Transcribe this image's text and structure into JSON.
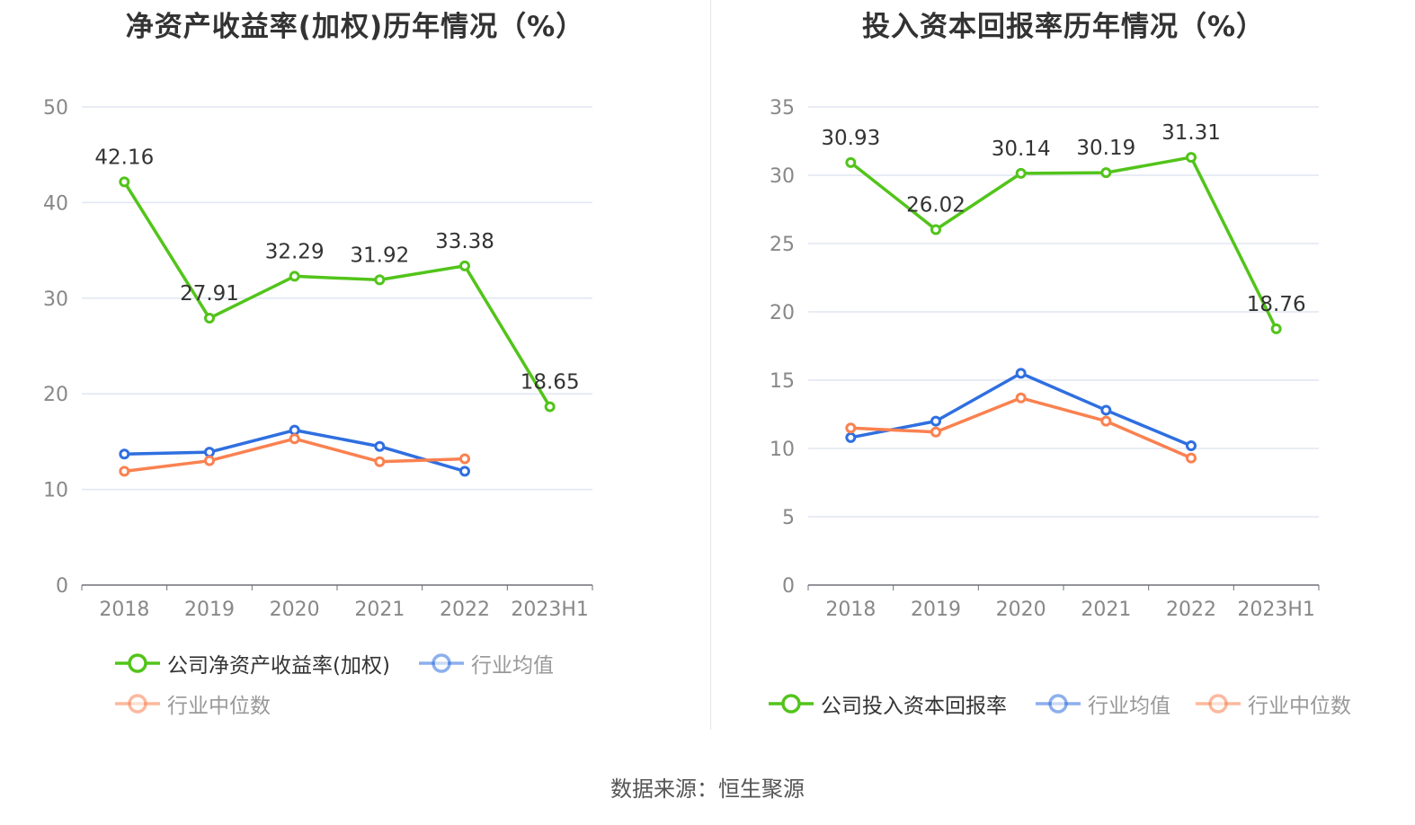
{
  "chart_data": [
    {
      "type": "line",
      "title": "净资产收益率(加权)历年情况（%）",
      "categories": [
        "2018",
        "2019",
        "2020",
        "2021",
        "2022",
        "2023H1"
      ],
      "xlabel": "",
      "ylabel": "",
      "ylim": [
        0,
        50
      ],
      "yticks": [
        0,
        10,
        20,
        30,
        40,
        50
      ],
      "grid": true,
      "legend_position": "bottom",
      "series": [
        {
          "name": "公司净资产收益率(加权)",
          "color": "#52c41a",
          "values": [
            42.16,
            27.91,
            32.29,
            31.92,
            33.38,
            18.65
          ],
          "labels": [
            "42.16",
            "27.91",
            "32.29",
            "31.92",
            "33.38",
            "18.65"
          ],
          "active": true
        },
        {
          "name": "行业均值",
          "color": "#2f6fe0",
          "values": [
            13.7,
            13.9,
            16.2,
            14.5,
            11.9,
            null
          ],
          "active": false
        },
        {
          "name": "行业中位数",
          "color": "#fa8150",
          "values": [
            11.9,
            13.0,
            15.3,
            12.9,
            13.2,
            null
          ],
          "active": false
        }
      ]
    },
    {
      "type": "line",
      "title": "投入资本回报率历年情况（%）",
      "categories": [
        "2018",
        "2019",
        "2020",
        "2021",
        "2022",
        "2023H1"
      ],
      "xlabel": "",
      "ylabel": "",
      "ylim": [
        0,
        35
      ],
      "yticks": [
        0,
        5,
        10,
        15,
        20,
        25,
        30,
        35
      ],
      "grid": true,
      "legend_position": "bottom",
      "series": [
        {
          "name": "公司投入资本回报率",
          "color": "#52c41a",
          "values": [
            30.93,
            26.02,
            30.14,
            30.19,
            31.31,
            18.76
          ],
          "labels": [
            "30.93",
            "26.02",
            "30.14",
            "30.19",
            "31.31",
            "18.76"
          ],
          "active": true
        },
        {
          "name": "行业均值",
          "color": "#2f6fe0",
          "values": [
            10.8,
            12.0,
            15.5,
            12.8,
            10.2,
            null
          ],
          "active": false
        },
        {
          "name": "行业中位数",
          "color": "#fa8150",
          "values": [
            11.5,
            11.2,
            13.7,
            12.0,
            9.3,
            null
          ],
          "active": false
        }
      ]
    }
  ],
  "footer": {
    "source": "数据来源：恒生聚源"
  }
}
